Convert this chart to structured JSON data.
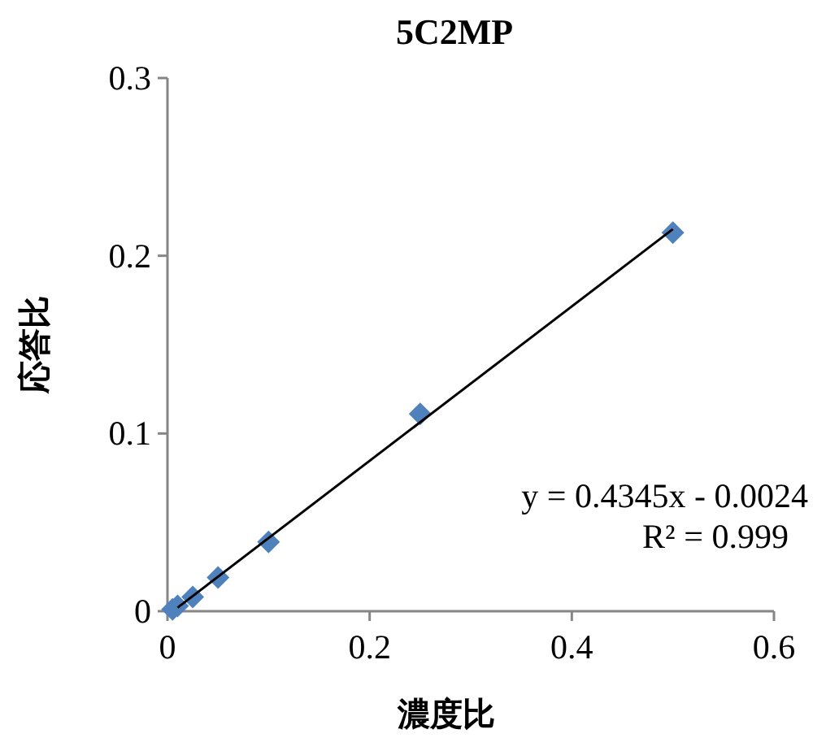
{
  "chart_data": {
    "type": "scatter",
    "title": "5C2MP",
    "xlabel": "濃度比",
    "ylabel": "応答比",
    "xlim": [
      0,
      0.6
    ],
    "xticks": [
      0,
      0.2,
      0.4,
      0.6
    ],
    "ylim": [
      0,
      0.3
    ],
    "yticks": [
      0,
      0.1,
      0.2,
      0.3
    ],
    "grid": false,
    "series": [
      {
        "color": "#4f81bd",
        "marker": "diamond",
        "x": [
          0.005,
          0.01,
          0.025,
          0.05,
          0.1,
          0.25,
          0.5
        ],
        "values": [
          0.001,
          0.003,
          0.008,
          0.019,
          0.039,
          0.111,
          0.213
        ]
      },
      {
        "type": "line",
        "color": "#000000",
        "marker": "none",
        "line_style": "solid",
        "x": [
          0.01,
          0.5
        ],
        "values": [
          0.002,
          0.215
        ]
      }
    ],
    "annotations": [
      "y = 0.4345x - 0.0024",
      "R² = 0.999"
    ]
  }
}
